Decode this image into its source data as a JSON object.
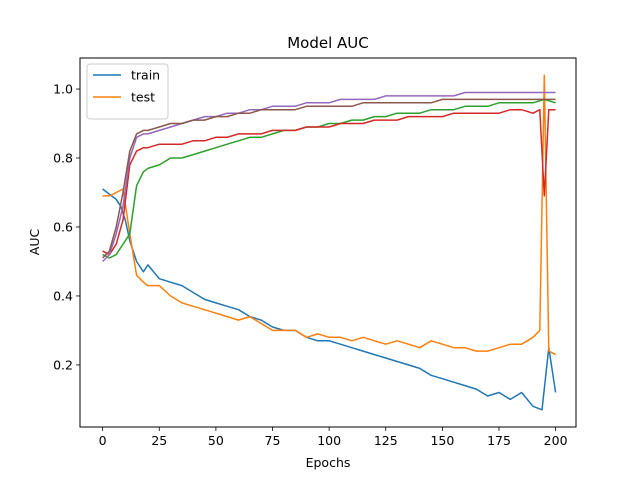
{
  "chart_data": {
    "type": "line",
    "title": "Model AUC",
    "xlabel": "Epochs",
    "ylabel": "AUC",
    "xlim": [
      -10,
      209
    ],
    "ylim": [
      0.02,
      1.09
    ],
    "xticks": [
      0,
      25,
      50,
      75,
      100,
      125,
      150,
      175,
      200
    ],
    "yticks": [
      0.2,
      0.4,
      0.6,
      0.8,
      1.0
    ],
    "ytick_labels": [
      "0.2",
      "0.4",
      "0.6",
      "0.8",
      "1.0"
    ],
    "legend_position": "upper-left",
    "grid": false,
    "series": [
      {
        "name": "train",
        "color": "#1f77b4",
        "in_legend": true,
        "points": [
          [
            0,
            0.71
          ],
          [
            2,
            0.7
          ],
          [
            4,
            0.69
          ],
          [
            6,
            0.68
          ],
          [
            8,
            0.66
          ],
          [
            10,
            0.62
          ],
          [
            12,
            0.56
          ],
          [
            15,
            0.5
          ],
          [
            18,
            0.47
          ],
          [
            20,
            0.49
          ],
          [
            25,
            0.45
          ],
          [
            30,
            0.44
          ],
          [
            35,
            0.43
          ],
          [
            40,
            0.41
          ],
          [
            45,
            0.39
          ],
          [
            50,
            0.38
          ],
          [
            55,
            0.37
          ],
          [
            60,
            0.36
          ],
          [
            65,
            0.34
          ],
          [
            70,
            0.33
          ],
          [
            75,
            0.31
          ],
          [
            80,
            0.3
          ],
          [
            85,
            0.3
          ],
          [
            90,
            0.28
          ],
          [
            95,
            0.27
          ],
          [
            100,
            0.27
          ],
          [
            105,
            0.26
          ],
          [
            110,
            0.25
          ],
          [
            115,
            0.24
          ],
          [
            120,
            0.23
          ],
          [
            125,
            0.22
          ],
          [
            130,
            0.21
          ],
          [
            135,
            0.2
          ],
          [
            140,
            0.19
          ],
          [
            145,
            0.17
          ],
          [
            150,
            0.16
          ],
          [
            155,
            0.15
          ],
          [
            160,
            0.14
          ],
          [
            165,
            0.13
          ],
          [
            170,
            0.11
          ],
          [
            175,
            0.12
          ],
          [
            180,
            0.1
          ],
          [
            185,
            0.12
          ],
          [
            190,
            0.08
          ],
          [
            194,
            0.07
          ],
          [
            197,
            0.25
          ],
          [
            200,
            0.12
          ]
        ]
      },
      {
        "name": "test",
        "color": "#ff7f0e",
        "in_legend": true,
        "points": [
          [
            0,
            0.69
          ],
          [
            3,
            0.69
          ],
          [
            6,
            0.7
          ],
          [
            9,
            0.71
          ],
          [
            12,
            0.58
          ],
          [
            15,
            0.46
          ],
          [
            18,
            0.44
          ],
          [
            20,
            0.43
          ],
          [
            25,
            0.43
          ],
          [
            30,
            0.4
          ],
          [
            35,
            0.38
          ],
          [
            40,
            0.37
          ],
          [
            45,
            0.36
          ],
          [
            50,
            0.35
          ],
          [
            55,
            0.34
          ],
          [
            60,
            0.33
          ],
          [
            65,
            0.34
          ],
          [
            70,
            0.32
          ],
          [
            75,
            0.3
          ],
          [
            80,
            0.3
          ],
          [
            85,
            0.3
          ],
          [
            90,
            0.28
          ],
          [
            95,
            0.29
          ],
          [
            100,
            0.28
          ],
          [
            105,
            0.28
          ],
          [
            110,
            0.27
          ],
          [
            115,
            0.28
          ],
          [
            120,
            0.27
          ],
          [
            125,
            0.26
          ],
          [
            130,
            0.27
          ],
          [
            135,
            0.26
          ],
          [
            140,
            0.25
          ],
          [
            145,
            0.27
          ],
          [
            150,
            0.26
          ],
          [
            155,
            0.25
          ],
          [
            160,
            0.25
          ],
          [
            165,
            0.24
          ],
          [
            170,
            0.24
          ],
          [
            175,
            0.25
          ],
          [
            180,
            0.26
          ],
          [
            185,
            0.26
          ],
          [
            190,
            0.28
          ],
          [
            193,
            0.3
          ],
          [
            195,
            1.04
          ],
          [
            197,
            0.24
          ],
          [
            200,
            0.23
          ]
        ]
      },
      {
        "name": "",
        "color": "#2ca02c",
        "in_legend": false,
        "points": [
          [
            0,
            0.52
          ],
          [
            3,
            0.51
          ],
          [
            6,
            0.52
          ],
          [
            9,
            0.55
          ],
          [
            12,
            0.58
          ],
          [
            15,
            0.72
          ],
          [
            18,
            0.76
          ],
          [
            20,
            0.77
          ],
          [
            25,
            0.78
          ],
          [
            30,
            0.8
          ],
          [
            35,
            0.8
          ],
          [
            40,
            0.81
          ],
          [
            45,
            0.82
          ],
          [
            50,
            0.83
          ],
          [
            55,
            0.84
          ],
          [
            60,
            0.85
          ],
          [
            65,
            0.86
          ],
          [
            70,
            0.86
          ],
          [
            75,
            0.87
          ],
          [
            80,
            0.88
          ],
          [
            85,
            0.88
          ],
          [
            90,
            0.89
          ],
          [
            95,
            0.89
          ],
          [
            100,
            0.9
          ],
          [
            105,
            0.9
          ],
          [
            110,
            0.91
          ],
          [
            115,
            0.91
          ],
          [
            120,
            0.92
          ],
          [
            125,
            0.92
          ],
          [
            130,
            0.93
          ],
          [
            135,
            0.93
          ],
          [
            140,
            0.93
          ],
          [
            145,
            0.94
          ],
          [
            150,
            0.94
          ],
          [
            155,
            0.94
          ],
          [
            160,
            0.95
          ],
          [
            165,
            0.95
          ],
          [
            170,
            0.95
          ],
          [
            175,
            0.96
          ],
          [
            180,
            0.96
          ],
          [
            185,
            0.96
          ],
          [
            190,
            0.96
          ],
          [
            195,
            0.97
          ],
          [
            200,
            0.96
          ]
        ]
      },
      {
        "name": "",
        "color": "#d62728",
        "in_legend": false,
        "points": [
          [
            0,
            0.53
          ],
          [
            3,
            0.52
          ],
          [
            6,
            0.55
          ],
          [
            9,
            0.62
          ],
          [
            12,
            0.78
          ],
          [
            15,
            0.82
          ],
          [
            18,
            0.83
          ],
          [
            20,
            0.83
          ],
          [
            25,
            0.84
          ],
          [
            30,
            0.84
          ],
          [
            35,
            0.84
          ],
          [
            40,
            0.85
          ],
          [
            45,
            0.85
          ],
          [
            50,
            0.86
          ],
          [
            55,
            0.86
          ],
          [
            60,
            0.87
          ],
          [
            65,
            0.87
          ],
          [
            70,
            0.87
          ],
          [
            75,
            0.88
          ],
          [
            80,
            0.88
          ],
          [
            85,
            0.88
          ],
          [
            90,
            0.89
          ],
          [
            95,
            0.89
          ],
          [
            100,
            0.89
          ],
          [
            105,
            0.9
          ],
          [
            110,
            0.9
          ],
          [
            115,
            0.9
          ],
          [
            120,
            0.91
          ],
          [
            125,
            0.91
          ],
          [
            130,
            0.91
          ],
          [
            135,
            0.92
          ],
          [
            140,
            0.92
          ],
          [
            145,
            0.92
          ],
          [
            150,
            0.92
          ],
          [
            155,
            0.93
          ],
          [
            160,
            0.93
          ],
          [
            165,
            0.93
          ],
          [
            170,
            0.93
          ],
          [
            175,
            0.93
          ],
          [
            180,
            0.94
          ],
          [
            185,
            0.94
          ],
          [
            190,
            0.93
          ],
          [
            193,
            0.94
          ],
          [
            195,
            0.69
          ],
          [
            197,
            0.94
          ],
          [
            200,
            0.94
          ]
        ]
      },
      {
        "name": "",
        "color": "#9467bd",
        "in_legend": false,
        "points": [
          [
            0,
            0.5
          ],
          [
            3,
            0.52
          ],
          [
            6,
            0.58
          ],
          [
            9,
            0.66
          ],
          [
            12,
            0.8
          ],
          [
            15,
            0.86
          ],
          [
            18,
            0.87
          ],
          [
            20,
            0.87
          ],
          [
            25,
            0.88
          ],
          [
            30,
            0.89
          ],
          [
            35,
            0.9
          ],
          [
            40,
            0.91
          ],
          [
            45,
            0.92
          ],
          [
            50,
            0.92
          ],
          [
            55,
            0.93
          ],
          [
            60,
            0.93
          ],
          [
            65,
            0.94
          ],
          [
            70,
            0.94
          ],
          [
            75,
            0.95
          ],
          [
            80,
            0.95
          ],
          [
            85,
            0.95
          ],
          [
            90,
            0.96
          ],
          [
            95,
            0.96
          ],
          [
            100,
            0.96
          ],
          [
            105,
            0.97
          ],
          [
            110,
            0.97
          ],
          [
            115,
            0.97
          ],
          [
            120,
            0.97
          ],
          [
            125,
            0.98
          ],
          [
            130,
            0.98
          ],
          [
            135,
            0.98
          ],
          [
            140,
            0.98
          ],
          [
            145,
            0.98
          ],
          [
            150,
            0.98
          ],
          [
            155,
            0.98
          ],
          [
            160,
            0.99
          ],
          [
            165,
            0.99
          ],
          [
            170,
            0.99
          ],
          [
            175,
            0.99
          ],
          [
            180,
            0.99
          ],
          [
            185,
            0.99
          ],
          [
            190,
            0.99
          ],
          [
            195,
            0.99
          ],
          [
            200,
            0.99
          ]
        ]
      },
      {
        "name": "",
        "color": "#8c564b",
        "in_legend": false,
        "points": [
          [
            0,
            0.51
          ],
          [
            3,
            0.53
          ],
          [
            6,
            0.6
          ],
          [
            9,
            0.7
          ],
          [
            12,
            0.82
          ],
          [
            15,
            0.87
          ],
          [
            18,
            0.88
          ],
          [
            20,
            0.88
          ],
          [
            25,
            0.89
          ],
          [
            30,
            0.9
          ],
          [
            35,
            0.9
          ],
          [
            40,
            0.91
          ],
          [
            45,
            0.91
          ],
          [
            50,
            0.92
          ],
          [
            55,
            0.92
          ],
          [
            60,
            0.93
          ],
          [
            65,
            0.93
          ],
          [
            70,
            0.94
          ],
          [
            75,
            0.94
          ],
          [
            80,
            0.94
          ],
          [
            85,
            0.94
          ],
          [
            90,
            0.95
          ],
          [
            95,
            0.95
          ],
          [
            100,
            0.95
          ],
          [
            105,
            0.95
          ],
          [
            110,
            0.95
          ],
          [
            115,
            0.96
          ],
          [
            120,
            0.96
          ],
          [
            125,
            0.96
          ],
          [
            130,
            0.96
          ],
          [
            135,
            0.96
          ],
          [
            140,
            0.96
          ],
          [
            145,
            0.96
          ],
          [
            150,
            0.97
          ],
          [
            155,
            0.97
          ],
          [
            160,
            0.97
          ],
          [
            165,
            0.97
          ],
          [
            170,
            0.97
          ],
          [
            175,
            0.97
          ],
          [
            180,
            0.97
          ],
          [
            185,
            0.97
          ],
          [
            190,
            0.97
          ],
          [
            195,
            0.97
          ],
          [
            200,
            0.97
          ]
        ]
      }
    ]
  }
}
